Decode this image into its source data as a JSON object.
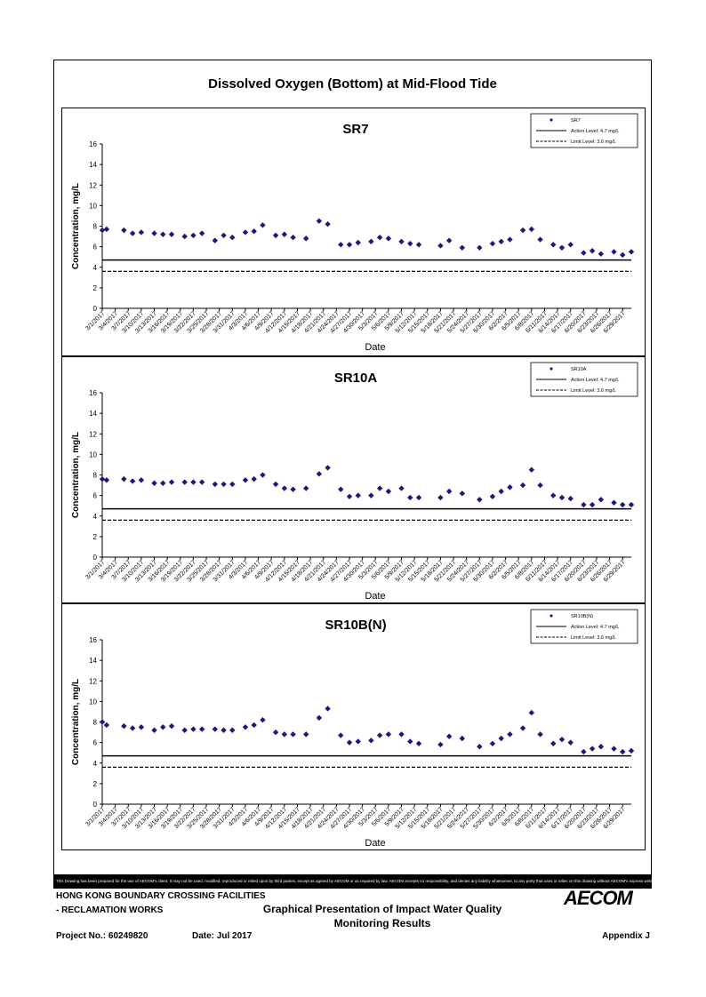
{
  "page_title": "Dissolved Oxygen (Bottom) at Mid-Flood Tide",
  "footer": {
    "disclaimer": "This Drawing has been prepared for the use of AECOM's client. It may not be used, modified, reproduced or relied upon by third parties, except as agreed by AECOM or as required by law. AECOM accepts no responsibility, and denies any liability whatsoever, to any party that uses or relies on this drawing without AECOM's express written consent.",
    "project_line1": "HONG KONG BOUNDARY CROSSING FACILITIES",
    "project_line2": "- RECLAMATION WORKS",
    "doc_title_line1": "Graphical Presentation of Impact Water Quality",
    "doc_title_line2": "Monitoring Results",
    "project_no": "Project No.: 60249820",
    "date": "Date: Jul 2017",
    "appendix": "Appendix J",
    "logo_text": "AECOM"
  },
  "colors": {
    "marker": "#1a1a7a",
    "line": "#000000"
  },
  "chart_data": [
    {
      "type": "scatter",
      "title": "SR7",
      "xlabel": "Date",
      "ylabel": "Concentration, mg/L",
      "ylim": [
        0,
        16
      ],
      "yticks": [
        0,
        2,
        4,
        6,
        8,
        10,
        12,
        14,
        16
      ],
      "xlim": [
        "3/1/2017",
        "7/1/2017"
      ],
      "xticks": [
        "3/1/2017",
        "3/4/2017",
        "3/7/2017",
        "3/10/2017",
        "3/13/2017",
        "3/16/2017",
        "3/19/2017",
        "3/22/2017",
        "3/25/2017",
        "3/28/2017",
        "3/31/2017",
        "4/3/2017",
        "4/6/2017",
        "4/9/2017",
        "4/12/2017",
        "4/15/2017",
        "4/18/2017",
        "4/21/2017",
        "4/24/2017",
        "4/27/2017",
        "4/30/2017",
        "5/3/2017",
        "5/6/2017",
        "5/9/2017",
        "5/12/2017",
        "5/15/2017",
        "5/18/2017",
        "5/21/2017",
        "5/24/2017",
        "5/27/2017",
        "5/30/2017",
        "6/2/2017",
        "6/5/2017",
        "6/8/2017",
        "6/11/2017",
        "6/14/2017",
        "6/17/2017",
        "6/20/2017",
        "6/23/2017",
        "6/26/2017",
        "6/29/2017"
      ],
      "legend_placement": "top-right",
      "legend": {
        "series": "SR7",
        "action": "Action Level: 4.7 mg/L",
        "limit": "Limit Level: 3.6 mg/L"
      },
      "action_level": 4.7,
      "limit_level": 3.6,
      "points": [
        {
          "x": "3/1/2017",
          "y": 7.6
        },
        {
          "x": "3/2/2017",
          "y": 7.7
        },
        {
          "x": "3/6/2017",
          "y": 7.6
        },
        {
          "x": "3/8/2017",
          "y": 7.3
        },
        {
          "x": "3/10/2017",
          "y": 7.4
        },
        {
          "x": "3/13/2017",
          "y": 7.3
        },
        {
          "x": "3/15/2017",
          "y": 7.2
        },
        {
          "x": "3/17/2017",
          "y": 7.2
        },
        {
          "x": "3/20/2017",
          "y": 7.0
        },
        {
          "x": "3/22/2017",
          "y": 7.1
        },
        {
          "x": "3/24/2017",
          "y": 7.3
        },
        {
          "x": "3/27/2017",
          "y": 6.6
        },
        {
          "x": "3/29/2017",
          "y": 7.1
        },
        {
          "x": "3/31/2017",
          "y": 6.9
        },
        {
          "x": "4/3/2017",
          "y": 7.4
        },
        {
          "x": "4/5/2017",
          "y": 7.5
        },
        {
          "x": "4/7/2017",
          "y": 8.1
        },
        {
          "x": "4/10/2017",
          "y": 7.1
        },
        {
          "x": "4/12/2017",
          "y": 7.2
        },
        {
          "x": "4/14/2017",
          "y": 6.9
        },
        {
          "x": "4/17/2017",
          "y": 6.8
        },
        {
          "x": "4/20/2017",
          "y": 8.5
        },
        {
          "x": "4/22/2017",
          "y": 8.2
        },
        {
          "x": "4/25/2017",
          "y": 6.2
        },
        {
          "x": "4/27/2017",
          "y": 6.2
        },
        {
          "x": "4/29/2017",
          "y": 6.4
        },
        {
          "x": "5/2/2017",
          "y": 6.5
        },
        {
          "x": "5/4/2017",
          "y": 6.9
        },
        {
          "x": "5/6/2017",
          "y": 6.8
        },
        {
          "x": "5/9/2017",
          "y": 6.5
        },
        {
          "x": "5/11/2017",
          "y": 6.3
        },
        {
          "x": "5/13/2017",
          "y": 6.2
        },
        {
          "x": "5/18/2017",
          "y": 6.1
        },
        {
          "x": "5/20/2017",
          "y": 6.6
        },
        {
          "x": "5/23/2017",
          "y": 5.9
        },
        {
          "x": "5/27/2017",
          "y": 5.9
        },
        {
          "x": "5/30/2017",
          "y": 6.3
        },
        {
          "x": "6/1/2017",
          "y": 6.5
        },
        {
          "x": "6/3/2017",
          "y": 6.7
        },
        {
          "x": "6/6/2017",
          "y": 7.6
        },
        {
          "x": "6/8/2017",
          "y": 7.7
        },
        {
          "x": "6/10/2017",
          "y": 6.7
        },
        {
          "x": "6/13/2017",
          "y": 6.2
        },
        {
          "x": "6/15/2017",
          "y": 5.9
        },
        {
          "x": "6/17/2017",
          "y": 6.2
        },
        {
          "x": "6/20/2017",
          "y": 5.4
        },
        {
          "x": "6/22/2017",
          "y": 5.6
        },
        {
          "x": "6/24/2017",
          "y": 5.3
        },
        {
          "x": "6/27/2017",
          "y": 5.5
        },
        {
          "x": "6/29/2017",
          "y": 5.2
        },
        {
          "x": "7/1/2017",
          "y": 5.5
        }
      ]
    },
    {
      "type": "scatter",
      "title": "SR10A",
      "xlabel": "Date",
      "ylabel": "Concentration, mg/L",
      "ylim": [
        0,
        16
      ],
      "yticks": [
        0,
        2,
        4,
        6,
        8,
        10,
        12,
        14,
        16
      ],
      "xlim": [
        "3/1/2017",
        "7/1/2017"
      ],
      "xticks": [
        "3/1/2017",
        "3/4/2017",
        "3/7/2017",
        "3/10/2017",
        "3/13/2017",
        "3/16/2017",
        "3/19/2017",
        "3/22/2017",
        "3/25/2017",
        "3/28/2017",
        "3/31/2017",
        "4/3/2017",
        "4/6/2017",
        "4/9/2017",
        "4/12/2017",
        "4/15/2017",
        "4/18/2017",
        "4/21/2017",
        "4/24/2017",
        "4/27/2017",
        "4/30/2017",
        "5/3/2017",
        "5/6/2017",
        "5/9/2017",
        "5/12/2017",
        "5/15/2017",
        "5/18/2017",
        "5/21/2017",
        "5/24/2017",
        "5/27/2017",
        "5/30/2017",
        "6/2/2017",
        "6/5/2017",
        "6/8/2017",
        "6/11/2017",
        "6/14/2017",
        "6/17/2017",
        "6/20/2017",
        "6/23/2017",
        "6/26/2017",
        "6/29/2017"
      ],
      "legend_placement": "top-right",
      "legend": {
        "series": "SR10A",
        "action": "Action Level: 4.7 mg/L",
        "limit": "Limit Level: 3.6 mg/L"
      },
      "action_level": 4.7,
      "limit_level": 3.6,
      "points": [
        {
          "x": "3/1/2017",
          "y": 7.6
        },
        {
          "x": "3/2/2017",
          "y": 7.5
        },
        {
          "x": "3/6/2017",
          "y": 7.6
        },
        {
          "x": "3/8/2017",
          "y": 7.4
        },
        {
          "x": "3/10/2017",
          "y": 7.5
        },
        {
          "x": "3/13/2017",
          "y": 7.2
        },
        {
          "x": "3/15/2017",
          "y": 7.2
        },
        {
          "x": "3/17/2017",
          "y": 7.3
        },
        {
          "x": "3/20/2017",
          "y": 7.3
        },
        {
          "x": "3/22/2017",
          "y": 7.3
        },
        {
          "x": "3/24/2017",
          "y": 7.3
        },
        {
          "x": "3/27/2017",
          "y": 7.1
        },
        {
          "x": "3/29/2017",
          "y": 7.1
        },
        {
          "x": "3/31/2017",
          "y": 7.1
        },
        {
          "x": "4/3/2017",
          "y": 7.5
        },
        {
          "x": "4/5/2017",
          "y": 7.6
        },
        {
          "x": "4/7/2017",
          "y": 8.0
        },
        {
          "x": "4/10/2017",
          "y": 7.1
        },
        {
          "x": "4/12/2017",
          "y": 6.7
        },
        {
          "x": "4/14/2017",
          "y": 6.6
        },
        {
          "x": "4/17/2017",
          "y": 6.7
        },
        {
          "x": "4/20/2017",
          "y": 8.1
        },
        {
          "x": "4/22/2017",
          "y": 8.7
        },
        {
          "x": "4/25/2017",
          "y": 6.6
        },
        {
          "x": "4/27/2017",
          "y": 5.9
        },
        {
          "x": "4/29/2017",
          "y": 6.0
        },
        {
          "x": "5/2/2017",
          "y": 6.0
        },
        {
          "x": "5/4/2017",
          "y": 6.7
        },
        {
          "x": "5/6/2017",
          "y": 6.4
        },
        {
          "x": "5/9/2017",
          "y": 6.7
        },
        {
          "x": "5/11/2017",
          "y": 5.8
        },
        {
          "x": "5/13/2017",
          "y": 5.8
        },
        {
          "x": "5/18/2017",
          "y": 5.8
        },
        {
          "x": "5/20/2017",
          "y": 6.4
        },
        {
          "x": "5/23/2017",
          "y": 6.2
        },
        {
          "x": "5/27/2017",
          "y": 5.6
        },
        {
          "x": "5/30/2017",
          "y": 5.9
        },
        {
          "x": "6/1/2017",
          "y": 6.4
        },
        {
          "x": "6/3/2017",
          "y": 6.8
        },
        {
          "x": "6/6/2017",
          "y": 7.0
        },
        {
          "x": "6/8/2017",
          "y": 8.5
        },
        {
          "x": "6/10/2017",
          "y": 7.0
        },
        {
          "x": "6/13/2017",
          "y": 6.0
        },
        {
          "x": "6/15/2017",
          "y": 5.8
        },
        {
          "x": "6/17/2017",
          "y": 5.7
        },
        {
          "x": "6/20/2017",
          "y": 5.1
        },
        {
          "x": "6/22/2017",
          "y": 5.1
        },
        {
          "x": "6/24/2017",
          "y": 5.6
        },
        {
          "x": "6/27/2017",
          "y": 5.3
        },
        {
          "x": "6/29/2017",
          "y": 5.1
        },
        {
          "x": "7/1/2017",
          "y": 5.1
        }
      ]
    },
    {
      "type": "scatter",
      "title": "SR10B(N)",
      "xlabel": "Date",
      "ylabel": "Concentration, mg/L",
      "ylim": [
        0,
        16
      ],
      "yticks": [
        0,
        2,
        4,
        6,
        8,
        10,
        12,
        14,
        16
      ],
      "xlim": [
        "3/1/2017",
        "7/1/2017"
      ],
      "xticks": [
        "3/1/2017",
        "3/4/2017",
        "3/7/2017",
        "3/10/2017",
        "3/13/2017",
        "3/16/2017",
        "3/19/2017",
        "3/22/2017",
        "3/25/2017",
        "3/28/2017",
        "3/31/2017",
        "4/3/2017",
        "4/6/2017",
        "4/9/2017",
        "4/12/2017",
        "4/15/2017",
        "4/18/2017",
        "4/21/2017",
        "4/24/2017",
        "4/27/2017",
        "4/30/2017",
        "5/3/2017",
        "5/6/2017",
        "5/9/2017",
        "5/12/2017",
        "5/15/2017",
        "5/18/2017",
        "5/21/2017",
        "5/24/2017",
        "5/27/2017",
        "5/30/2017",
        "6/2/2017",
        "6/5/2017",
        "6/8/2017",
        "6/11/2017",
        "6/14/2017",
        "6/17/2017",
        "6/20/2017",
        "6/23/2017",
        "6/26/2017",
        "6/29/2017"
      ],
      "legend_placement": "top-right",
      "legend": {
        "series": "SR10B(N)",
        "action": "Action Level: 4.7 mg/L",
        "limit": "Limit Level: 3.6 mg/L"
      },
      "action_level": 4.7,
      "limit_level": 3.6,
      "points": [
        {
          "x": "3/1/2017",
          "y": 8.0
        },
        {
          "x": "3/2/2017",
          "y": 7.7
        },
        {
          "x": "3/6/2017",
          "y": 7.6
        },
        {
          "x": "3/8/2017",
          "y": 7.4
        },
        {
          "x": "3/10/2017",
          "y": 7.5
        },
        {
          "x": "3/13/2017",
          "y": 7.2
        },
        {
          "x": "3/15/2017",
          "y": 7.5
        },
        {
          "x": "3/17/2017",
          "y": 7.6
        },
        {
          "x": "3/20/2017",
          "y": 7.2
        },
        {
          "x": "3/22/2017",
          "y": 7.3
        },
        {
          "x": "3/24/2017",
          "y": 7.3
        },
        {
          "x": "3/27/2017",
          "y": 7.3
        },
        {
          "x": "3/29/2017",
          "y": 7.2
        },
        {
          "x": "3/31/2017",
          "y": 7.2
        },
        {
          "x": "4/3/2017",
          "y": 7.5
        },
        {
          "x": "4/5/2017",
          "y": 7.7
        },
        {
          "x": "4/7/2017",
          "y": 8.2
        },
        {
          "x": "4/10/2017",
          "y": 7.0
        },
        {
          "x": "4/12/2017",
          "y": 6.8
        },
        {
          "x": "4/14/2017",
          "y": 6.8
        },
        {
          "x": "4/17/2017",
          "y": 6.8
        },
        {
          "x": "4/20/2017",
          "y": 8.4
        },
        {
          "x": "4/22/2017",
          "y": 9.3
        },
        {
          "x": "4/25/2017",
          "y": 6.7
        },
        {
          "x": "4/27/2017",
          "y": 6.0
        },
        {
          "x": "4/29/2017",
          "y": 6.1
        },
        {
          "x": "5/2/2017",
          "y": 6.2
        },
        {
          "x": "5/4/2017",
          "y": 6.7
        },
        {
          "x": "5/6/2017",
          "y": 6.8
        },
        {
          "x": "5/9/2017",
          "y": 6.8
        },
        {
          "x": "5/11/2017",
          "y": 6.1
        },
        {
          "x": "5/13/2017",
          "y": 5.9
        },
        {
          "x": "5/18/2017",
          "y": 5.8
        },
        {
          "x": "5/20/2017",
          "y": 6.6
        },
        {
          "x": "5/23/2017",
          "y": 6.4
        },
        {
          "x": "5/27/2017",
          "y": 5.6
        },
        {
          "x": "5/30/2017",
          "y": 5.9
        },
        {
          "x": "6/1/2017",
          "y": 6.4
        },
        {
          "x": "6/3/2017",
          "y": 6.8
        },
        {
          "x": "6/6/2017",
          "y": 7.4
        },
        {
          "x": "6/8/2017",
          "y": 8.9
        },
        {
          "x": "6/10/2017",
          "y": 6.8
        },
        {
          "x": "6/13/2017",
          "y": 5.9
        },
        {
          "x": "6/15/2017",
          "y": 6.3
        },
        {
          "x": "6/17/2017",
          "y": 6.0
        },
        {
          "x": "6/20/2017",
          "y": 5.1
        },
        {
          "x": "6/22/2017",
          "y": 5.4
        },
        {
          "x": "6/24/2017",
          "y": 5.6
        },
        {
          "x": "6/27/2017",
          "y": 5.4
        },
        {
          "x": "6/29/2017",
          "y": 5.1
        },
        {
          "x": "7/1/2017",
          "y": 5.2
        }
      ]
    }
  ]
}
